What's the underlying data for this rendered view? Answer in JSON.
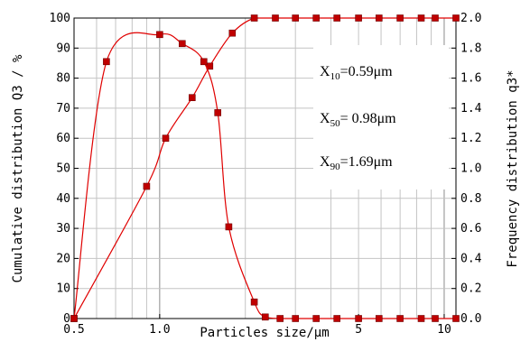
{
  "chart_data": {
    "type": "line",
    "x_scale": "log",
    "xlim": [
      0.5,
      11
    ],
    "ylim_left": [
      0,
      100
    ],
    "ylim_right": [
      0,
      2.0
    ],
    "grid": true,
    "xlabel": "Particles size/μm",
    "ylabel_left": "Cumulative distribution Q3 / %",
    "ylabel_right": "Frequency distribution q3*",
    "x_ticks": [
      0.5,
      1.0,
      5,
      10
    ],
    "x_tick_labels": [
      "0.5",
      "1.0",
      "5",
      "10"
    ],
    "y_left_ticks": [
      0,
      10,
      20,
      30,
      40,
      50,
      60,
      70,
      80,
      90,
      100
    ],
    "y_left_tick_labels": [
      "0",
      "10",
      "20",
      "30",
      "40",
      "50",
      "60",
      "70",
      "80",
      "90",
      "100"
    ],
    "y_right_ticks": [
      0,
      0.2,
      0.4,
      0.6,
      0.8,
      1.0,
      1.2,
      1.4,
      1.6,
      1.8,
      2.0
    ],
    "y_right_tick_labels": [
      "0.0",
      "0.2",
      "0.4",
      "0.6",
      "0.8",
      "1.0",
      "1.2",
      "1.4",
      "1.6",
      "1.8",
      "2.0"
    ],
    "series": [
      {
        "axis": "left",
        "color": "#e00000",
        "marker_color": "#c00000",
        "x": [
          0.5,
          0.9,
          1.05,
          1.3,
          1.5,
          1.8,
          2.15,
          2.55,
          3.0,
          3.55,
          4.2,
          5.0,
          5.9,
          7.0,
          8.3,
          9.3,
          11.0
        ],
        "y": [
          0,
          44,
          60,
          73.5,
          84,
          95,
          100,
          100,
          100,
          100,
          100,
          100,
          100,
          100,
          100,
          100,
          100
        ]
      },
      {
        "axis": "right",
        "color": "#e00000",
        "marker_color": "#c00000",
        "x": [
          0.5,
          0.65,
          1.0,
          1.2,
          1.43,
          1.6,
          1.75,
          2.15,
          2.35,
          2.65,
          3.0,
          3.55,
          4.2,
          5.0,
          5.9,
          7.0,
          8.3,
          9.3,
          11.0
        ],
        "y": [
          0,
          1.71,
          1.89,
          1.83,
          1.71,
          1.37,
          0.61,
          0.11,
          0.01,
          0.0,
          0.0,
          0.0,
          0.0,
          0.0,
          0.0,
          0.0,
          0.0,
          0.0,
          0.0
        ]
      }
    ],
    "annotations": [
      {
        "prefix": "X",
        "sub": "10",
        "value": "=0.59μm"
      },
      {
        "prefix": "X",
        "sub": "50",
        "value": "= 0.98μm"
      },
      {
        "prefix": "X",
        "sub": "90",
        "value": "=1.69μm"
      }
    ]
  }
}
